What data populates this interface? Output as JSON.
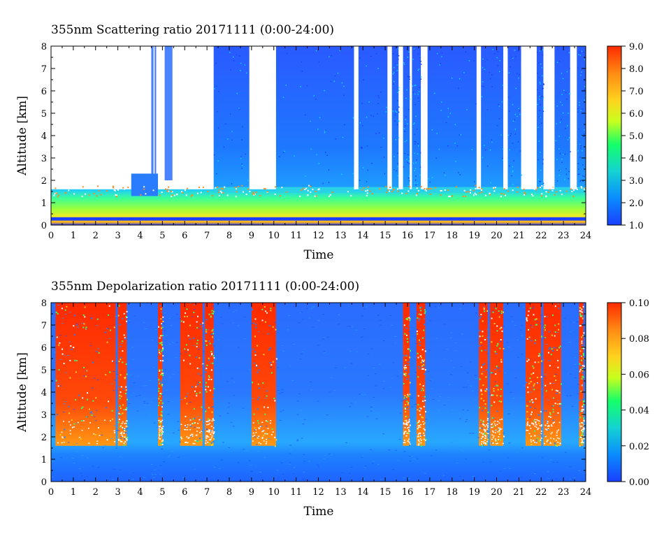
{
  "chart_data": [
    {
      "type": "heatmap",
      "title": "355nm Scattering ratio  20171111 (0:00-24:00)",
      "xlabel": "Time",
      "ylabel": "Altitude [km]",
      "xlim": [
        0,
        24
      ],
      "ylim": [
        0,
        8
      ],
      "x_ticks": [
        "0",
        "1",
        "2",
        "3",
        "4",
        "5",
        "6",
        "7",
        "8",
        "9",
        "10",
        "11",
        "12",
        "13",
        "14",
        "15",
        "16",
        "17",
        "18",
        "19",
        "20",
        "21",
        "22",
        "23",
        "24"
      ],
      "y_ticks": [
        "0",
        "1",
        "2",
        "3",
        "4",
        "5",
        "6",
        "7",
        "8"
      ],
      "colorbar": {
        "range": [
          1.0,
          9.0
        ],
        "ticks": [
          "1.0",
          "2.0",
          "3.0",
          "4.0",
          "5.0",
          "6.0",
          "7.0",
          "8.0",
          "9.0"
        ],
        "colors": [
          "#1a3fff",
          "#0aa0ff",
          "#14ff6a",
          "#c8ff1e",
          "#ffd21e",
          "#ff8a14",
          "#ff2a00"
        ]
      },
      "cloud_intervals_hours": [
        [
          7.3,
          8.9
        ],
        [
          10.1,
          13.6
        ],
        [
          13.8,
          15.1
        ],
        [
          15.3,
          15.6
        ],
        [
          15.8,
          16.1
        ],
        [
          16.2,
          16.6
        ],
        [
          16.9,
          19.1
        ],
        [
          19.3,
          20.3
        ],
        [
          20.5,
          21.1
        ],
        [
          21.8,
          22.1
        ],
        [
          22.6,
          23.3
        ],
        [
          23.6,
          24.0
        ]
      ]
    },
    {
      "type": "heatmap",
      "title": "355nm Depolarization ratio  20171111 (0:00-24:00)",
      "xlabel": "Time",
      "ylabel": "Altitude [km]",
      "xlim": [
        0,
        24
      ],
      "ylim": [
        0,
        8
      ],
      "x_ticks": [
        "0",
        "1",
        "2",
        "3",
        "4",
        "5",
        "6",
        "7",
        "8",
        "9",
        "10",
        "11",
        "12",
        "13",
        "14",
        "15",
        "16",
        "17",
        "18",
        "19",
        "20",
        "21",
        "22",
        "23",
        "24"
      ],
      "y_ticks": [
        "0",
        "1",
        "2",
        "3",
        "4",
        "5",
        "6",
        "7",
        "8"
      ],
      "colorbar": {
        "range": [
          0.0,
          0.1
        ],
        "ticks": [
          "0.00",
          "0.02",
          "0.04",
          "0.06",
          "0.08",
          "0.10"
        ],
        "colors": [
          "#1a3fff",
          "#0aa0ff",
          "#14ff6a",
          "#c8ff1e",
          "#ffd21e",
          "#ff8a14",
          "#ff2a00"
        ]
      },
      "high_depol_intervals_hours": [
        [
          0.2,
          2.9
        ],
        [
          3.0,
          3.4
        ],
        [
          4.8,
          5.0
        ],
        [
          5.8,
          6.8
        ],
        [
          6.9,
          7.3
        ],
        [
          9.0,
          10.1
        ],
        [
          15.8,
          16.1
        ],
        [
          16.4,
          16.8
        ],
        [
          19.2,
          19.6
        ],
        [
          19.7,
          20.3
        ],
        [
          21.3,
          22.0
        ],
        [
          22.1,
          22.9
        ],
        [
          23.7,
          23.9
        ]
      ]
    }
  ]
}
